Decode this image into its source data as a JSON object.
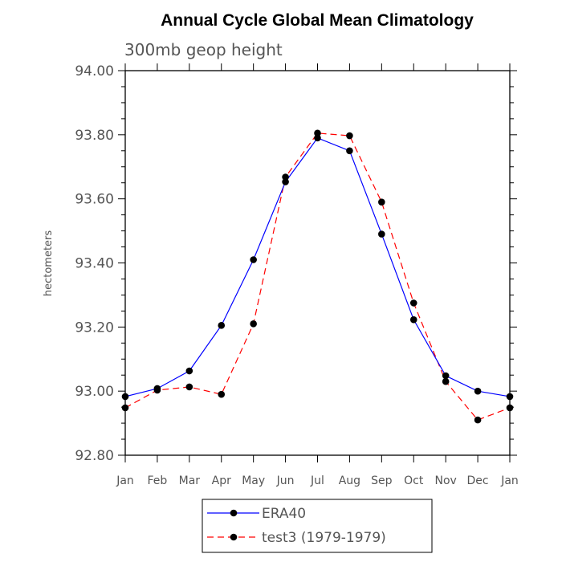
{
  "chart_data": {
    "type": "line",
    "title": "Annual Cycle Global Mean Climatology",
    "subtitle": "300mb geop height",
    "xlabel": "",
    "ylabel": "hectometers",
    "ylim": [
      92.8,
      94.0
    ],
    "yticks": [
      "92.80",
      "93.00",
      "93.20",
      "93.40",
      "93.60",
      "93.80",
      "94.00"
    ],
    "categories": [
      "Jan",
      "Feb",
      "Mar",
      "Apr",
      "May",
      "Jun",
      "Jul",
      "Aug",
      "Sep",
      "Oct",
      "Nov",
      "Dec",
      "Jan"
    ],
    "grid": false,
    "legend_position": "bottom",
    "series": [
      {
        "name": "ERA40",
        "color": "#0000ff",
        "dash": "solid",
        "marker": "filled-circle",
        "values": [
          92.983,
          93.008,
          93.063,
          93.205,
          93.41,
          93.653,
          93.79,
          93.75,
          93.49,
          93.223,
          93.048,
          93.0,
          92.983
        ]
      },
      {
        "name": "test3 (1979-1979)",
        "color": "#ff0000",
        "dash": "dashed",
        "marker": "filled-circle",
        "values": [
          92.948,
          93.003,
          93.013,
          92.99,
          93.21,
          93.668,
          93.805,
          93.797,
          93.59,
          93.275,
          93.03,
          92.91,
          92.948
        ]
      }
    ]
  }
}
